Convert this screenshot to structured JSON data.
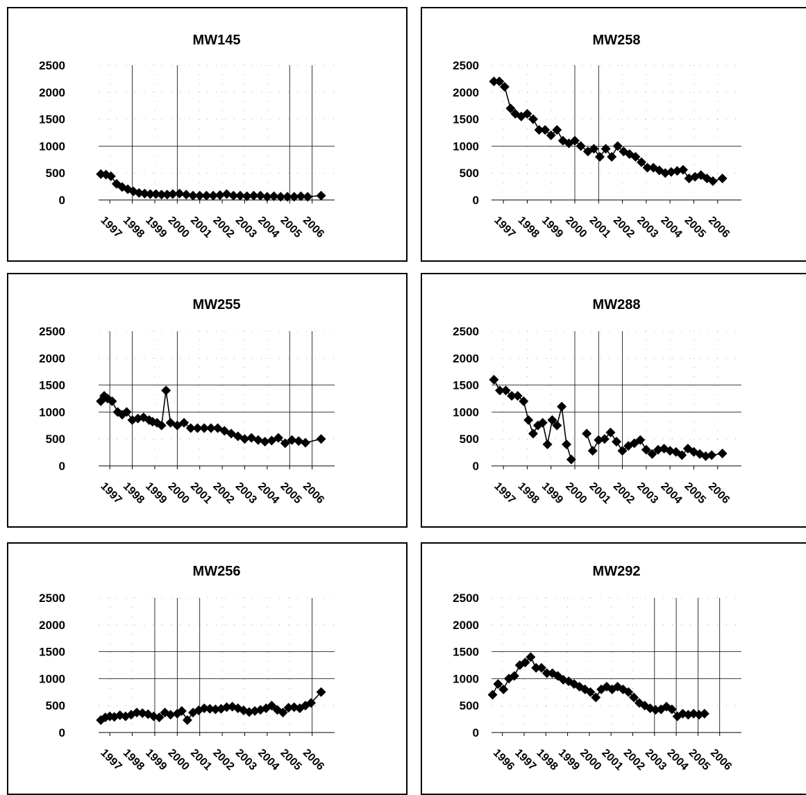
{
  "chart_data": [
    {
      "id": "mw145",
      "type": "line",
      "title": "MW145",
      "ylim": [
        0,
        2500
      ],
      "yticks": [
        0,
        500,
        1000,
        1500,
        2000,
        2500
      ],
      "xlim": [
        1996.5,
        2007.0
      ],
      "xticks": [
        "1997",
        "1998",
        "1999",
        "2000",
        "2001",
        "2002",
        "2003",
        "2004",
        "2005",
        "2006"
      ],
      "grid": "major lines at 1000 and selected years",
      "vgrid_solid": [
        1998,
        2000,
        2005,
        2006
      ],
      "series": [
        {
          "x": [
            1996.6,
            1996.83,
            1997.05,
            1997.3,
            1997.55,
            1997.8,
            1998.05,
            1998.3,
            1998.55,
            1998.8,
            1999.05,
            1999.3,
            1999.55,
            1999.8,
            2000.1,
            2000.4,
            2000.7,
            2001.0,
            2001.3,
            2001.6,
            2001.9,
            2002.2,
            2002.5,
            2002.8,
            2003.1,
            2003.4,
            2003.7,
            2004.0,
            2004.3,
            2004.6,
            2004.9,
            2005.2,
            2005.5,
            2005.8,
            2006.4
          ],
          "y": [
            480,
            470,
            440,
            300,
            240,
            200,
            160,
            130,
            120,
            110,
            110,
            100,
            100,
            110,
            120,
            100,
            80,
            80,
            80,
            80,
            90,
            110,
            80,
            80,
            70,
            80,
            80,
            60,
            70,
            60,
            60,
            60,
            70,
            60,
            80
          ]
        }
      ]
    },
    {
      "id": "mw258",
      "type": "line",
      "title": "MW258",
      "ylim": [
        0,
        2500
      ],
      "yticks": [
        0,
        500,
        1000,
        1500,
        2000,
        2500
      ],
      "xlim": [
        1996.5,
        2007.0
      ],
      "xticks": [
        "1997",
        "1998",
        "1999",
        "2000",
        "2001",
        "2002",
        "2003",
        "2004",
        "2005",
        "2006"
      ],
      "grid": "major lines at 1000 and selected years",
      "vgrid_solid": [
        2000,
        2001
      ],
      "series": [
        {
          "x": [
            1996.6,
            1996.83,
            1997.05,
            1997.3,
            1997.5,
            1997.75,
            1998.0,
            1998.25,
            1998.5,
            1998.75,
            1999.0,
            1999.25,
            1999.5,
            1999.75,
            2000.0,
            2000.25,
            2000.55,
            2000.8,
            2001.05,
            2001.3,
            2001.55,
            2001.8,
            2002.05,
            2002.3,
            2002.55,
            2002.8,
            2003.05,
            2003.3,
            2003.55,
            2003.8,
            2004.05,
            2004.3,
            2004.55,
            2004.8,
            2005.05,
            2005.3,
            2005.55,
            2005.8,
            2006.2
          ],
          "y": [
            2200,
            2200,
            2100,
            1700,
            1600,
            1550,
            1600,
            1500,
            1300,
            1300,
            1200,
            1300,
            1100,
            1050,
            1100,
            1000,
            900,
            950,
            800,
            950,
            800,
            1000,
            900,
            850,
            800,
            700,
            600,
            600,
            550,
            500,
            520,
            540,
            560,
            400,
            430,
            460,
            400,
            350,
            400
          ]
        }
      ]
    },
    {
      "id": "mw255",
      "type": "line",
      "title": "MW255",
      "ylim": [
        0,
        2500
      ],
      "yticks": [
        0,
        500,
        1000,
        1500,
        2000,
        2500
      ],
      "xlim": [
        1996.5,
        2007.0
      ],
      "xticks": [
        "1997",
        "1998",
        "1999",
        "2000",
        "2001",
        "2002",
        "2003",
        "2004",
        "2005",
        "2006"
      ],
      "grid": "major lines at 1500 and 1000 and selected years",
      "vgrid_solid": [
        1997,
        1998,
        2000,
        2005,
        2006
      ],
      "series": [
        {
          "x": [
            1996.6,
            1996.75,
            1996.9,
            1997.1,
            1997.35,
            1997.55,
            1997.75,
            1998.0,
            1998.25,
            1998.5,
            1998.75,
            1998.9,
            1999.1,
            1999.3,
            1999.5,
            1999.7,
            2000.0,
            2000.3,
            2000.6,
            2000.9,
            2001.2,
            2001.5,
            2001.8,
            2002.1,
            2002.4,
            2002.7,
            2003.0,
            2003.3,
            2003.6,
            2003.9,
            2004.2,
            2004.5,
            2004.8,
            2005.1,
            2005.4,
            2005.7,
            2006.4
          ],
          "y": [
            1200,
            1300,
            1250,
            1200,
            1000,
            950,
            1000,
            850,
            880,
            900,
            850,
            820,
            800,
            750,
            1400,
            800,
            750,
            800,
            700,
            700,
            700,
            700,
            700,
            650,
            600,
            550,
            500,
            520,
            480,
            450,
            470,
            520,
            420,
            480,
            460,
            430,
            500
          ]
        }
      ]
    },
    {
      "id": "mw288",
      "type": "line",
      "title": "MW288",
      "ylim": [
        0,
        2500
      ],
      "yticks": [
        0,
        500,
        1000,
        1500,
        2000,
        2500
      ],
      "xlim": [
        1996.5,
        2007.0
      ],
      "xticks": [
        "1997",
        "1998",
        "1999",
        "2000",
        "2001",
        "2002",
        "2003",
        "2004",
        "2005",
        "2006"
      ],
      "grid": "major lines at 1500 and 1000 and selected years",
      "vgrid_solid": [
        2000,
        2001,
        2002
      ],
      "series": [
        {
          "x": [
            1996.6,
            1996.85,
            1997.1,
            1997.35,
            1997.6,
            1997.85,
            1998.05,
            1998.25,
            1998.45,
            1998.65,
            1998.85,
            1999.05,
            1999.25,
            1999.45,
            1999.65,
            1999.85,
            2000.05
          ],
          "y": [
            1600,
            1400,
            1400,
            1300,
            1300,
            1200,
            850,
            600,
            750,
            800,
            400,
            850,
            750,
            1100,
            400,
            120,
            null
          ]
        },
        {
          "x": [
            2000.5,
            2000.75,
            2001.0,
            2001.25,
            2001.5,
            2001.75,
            2002.0,
            2002.25,
            2002.5,
            2002.75,
            2003.0,
            2003.25,
            2003.5,
            2003.75,
            2004.0,
            2004.25,
            2004.5,
            2004.75,
            2005.0,
            2005.25,
            2005.5,
            2005.75,
            2006.2
          ],
          "y": [
            600,
            280,
            480,
            500,
            620,
            450,
            280,
            370,
            420,
            480,
            300,
            220,
            300,
            320,
            280,
            260,
            200,
            320,
            260,
            220,
            180,
            200,
            230
          ]
        }
      ]
    },
    {
      "id": "mw256",
      "type": "line",
      "title": "MW256",
      "ylim": [
        0,
        2500
      ],
      "yticks": [
        0,
        500,
        1000,
        1500,
        2000,
        2500
      ],
      "xlim": [
        1996.5,
        2007.0
      ],
      "xticks": [
        "1997",
        "1998",
        "1999",
        "2000",
        "2001",
        "2002",
        "2003",
        "2004",
        "2005",
        "2006"
      ],
      "grid": "major lines at 1500 and 1000 and selected years",
      "vgrid_solid": [
        1999,
        2000,
        2001,
        2006
      ],
      "series": [
        {
          "x": [
            1996.6,
            1996.8,
            1997.0,
            1997.2,
            1997.45,
            1997.7,
            1997.95,
            1998.2,
            1998.45,
            1998.7,
            1998.95,
            1999.2,
            1999.45,
            1999.7,
            2000.0,
            2000.2,
            2000.45,
            2000.7,
            2000.95,
            2001.2,
            2001.45,
            2001.7,
            2001.95,
            2002.2,
            2002.45,
            2002.7,
            2002.95,
            2003.2,
            2003.45,
            2003.7,
            2003.95,
            2004.2,
            2004.45,
            2004.7,
            2004.95,
            2005.2,
            2005.45,
            2005.7,
            2005.95,
            2006.4
          ],
          "y": [
            230,
            280,
            300,
            290,
            320,
            300,
            330,
            370,
            360,
            340,
            300,
            280,
            370,
            330,
            350,
            400,
            230,
            370,
            410,
            450,
            440,
            430,
            440,
            470,
            480,
            450,
            410,
            380,
            400,
            420,
            450,
            500,
            420,
            370,
            460,
            470,
            450,
            500,
            550,
            750
          ]
        }
      ]
    },
    {
      "id": "mw292",
      "type": "line",
      "title": "MW292",
      "ylim": [
        0,
        2500
      ],
      "yticks": [
        0,
        500,
        1000,
        1500,
        2000,
        2500
      ],
      "xlim": [
        1995.5,
        2007.0
      ],
      "xticks": [
        "1996",
        "1997",
        "1998",
        "1999",
        "2000",
        "2001",
        "2002",
        "2003",
        "2004",
        "2005",
        "2006"
      ],
      "grid": "major lines at 1500 and 1000 and selected years",
      "vgrid_solid": [
        2003,
        2004,
        2005,
        2006
      ],
      "series": [
        {
          "x": [
            1995.55,
            1995.8,
            1996.05,
            1996.3,
            1996.55,
            1996.8,
            1997.05,
            1997.3,
            1997.55,
            1997.8,
            1998.05,
            1998.3,
            1998.55,
            1998.8,
            1999.05,
            1999.3,
            1999.55,
            1999.8,
            2000.05,
            2000.3,
            2000.55,
            2000.8,
            2001.05,
            2001.3,
            2001.55,
            2001.8,
            2002.05,
            2002.3,
            2002.55,
            2002.8,
            2003.05,
            2003.3,
            2003.55,
            2003.8,
            2004.05,
            2004.3,
            2004.55,
            2004.8,
            2005.05,
            2005.3
          ],
          "y": [
            700,
            900,
            800,
            1000,
            1050,
            1250,
            1300,
            1400,
            1200,
            1200,
            1100,
            1100,
            1050,
            980,
            950,
            900,
            850,
            800,
            750,
            650,
            800,
            850,
            800,
            850,
            800,
            750,
            650,
            550,
            500,
            450,
            420,
            430,
            480,
            430,
            300,
            350,
            330,
            350,
            330,
            350
          ]
        }
      ]
    }
  ]
}
